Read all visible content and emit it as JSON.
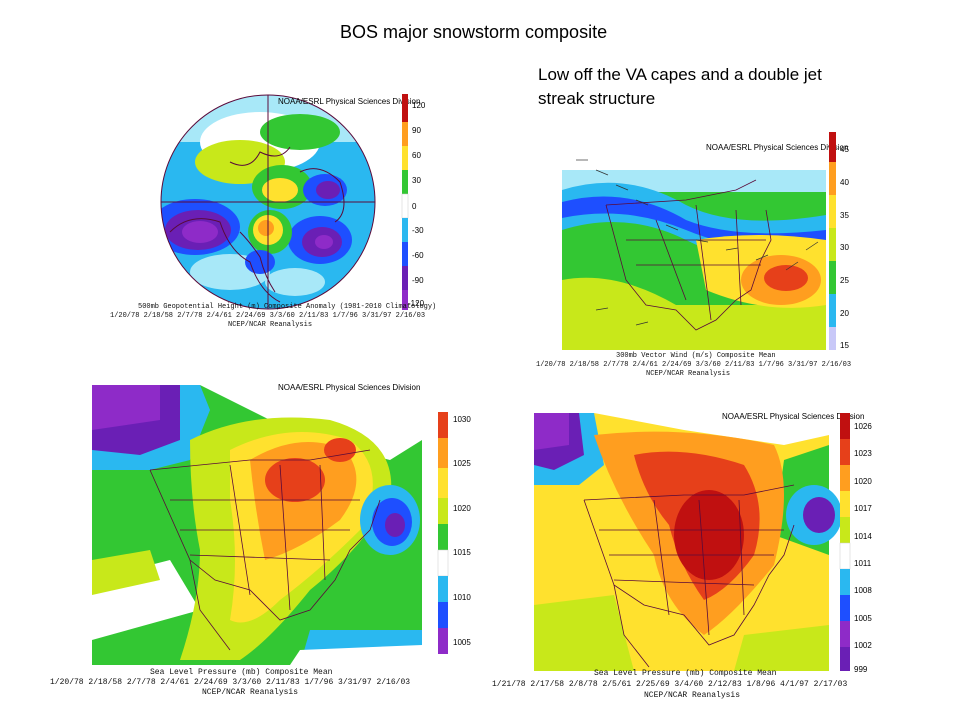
{
  "page": {
    "title": "BOS major snowstorm composite",
    "note_line1": "Low off the VA capes and a double jet",
    "note_line2": "streak structure"
  },
  "colors": {
    "purple": "#8e2bc8",
    "violet": "#6a1fb5",
    "blue": "#1e4fff",
    "cyan": "#2ab8f0",
    "light_cyan": "#a8e8f8",
    "green": "#33c733",
    "yellow_green": "#c8e81a",
    "yellow": "#ffe12e",
    "orange": "#ff9e1f",
    "red": "#e6401a",
    "dark_red": "#c01010",
    "white": "#ffffff",
    "map_line": "#5a0a3a"
  },
  "panel1": {
    "org": "NOAA/ESRL Physical Sciences Division",
    "caption1": "500mb Geopotential Height (m) Composite Anomaly (1981-2010 Climatology)",
    "caption2": "1/20/78 2/18/58 2/7/78 2/4/61 2/24/69 3/3/60 2/11/83 1/7/96 3/31/97 2/16/03",
    "caption3": "NCEP/NCAR Reanalysis",
    "colorbar": [
      "120",
      "90",
      "60",
      "30",
      "0",
      "-30",
      "-60",
      "-90",
      "-120"
    ]
  },
  "panel2": {
    "org": "NOAA/ESRL Physical Sciences Division",
    "caption1": "300mb Vector Wind (m/s) Composite Mean",
    "caption2": "1/20/78 2/18/58 2/7/78 2/4/61 2/24/69 3/3/60 2/11/83 1/7/96 3/31/97 2/16/03",
    "caption3": "NCEP/NCAR Reanalysis",
    "colorbar": [
      "45",
      "40",
      "35",
      "30",
      "25",
      "20",
      "15"
    ]
  },
  "panel3": {
    "org": "NOAA/ESRL Physical Sciences Division",
    "caption1": "Sea Level Pressure (mb) Composite Mean",
    "caption2": "1/20/78 2/18/58 2/7/78 2/4/61 2/24/69 3/3/60 2/11/83 1/7/96 3/31/97 2/16/03",
    "caption3": "NCEP/NCAR Reanalysis",
    "colorbar": [
      "1030",
      "1025",
      "1020",
      "1015",
      "1010",
      "1005"
    ]
  },
  "panel4": {
    "org": "NOAA/ESRL Physical Sciences Division",
    "caption1": "Sea Level Pressure (mb) Composite Mean",
    "caption2": "1/21/78 2/17/58 2/8/78 2/5/61 2/25/69 3/4/60 2/12/83 1/8/96 4/1/97 2/17/03",
    "caption3": "NCEP/NCAR Reanalysis",
    "colorbar": [
      "1026",
      "1023",
      "1020",
      "1017",
      "1014",
      "1011",
      "1008",
      "1005",
      "1002",
      "999"
    ]
  }
}
